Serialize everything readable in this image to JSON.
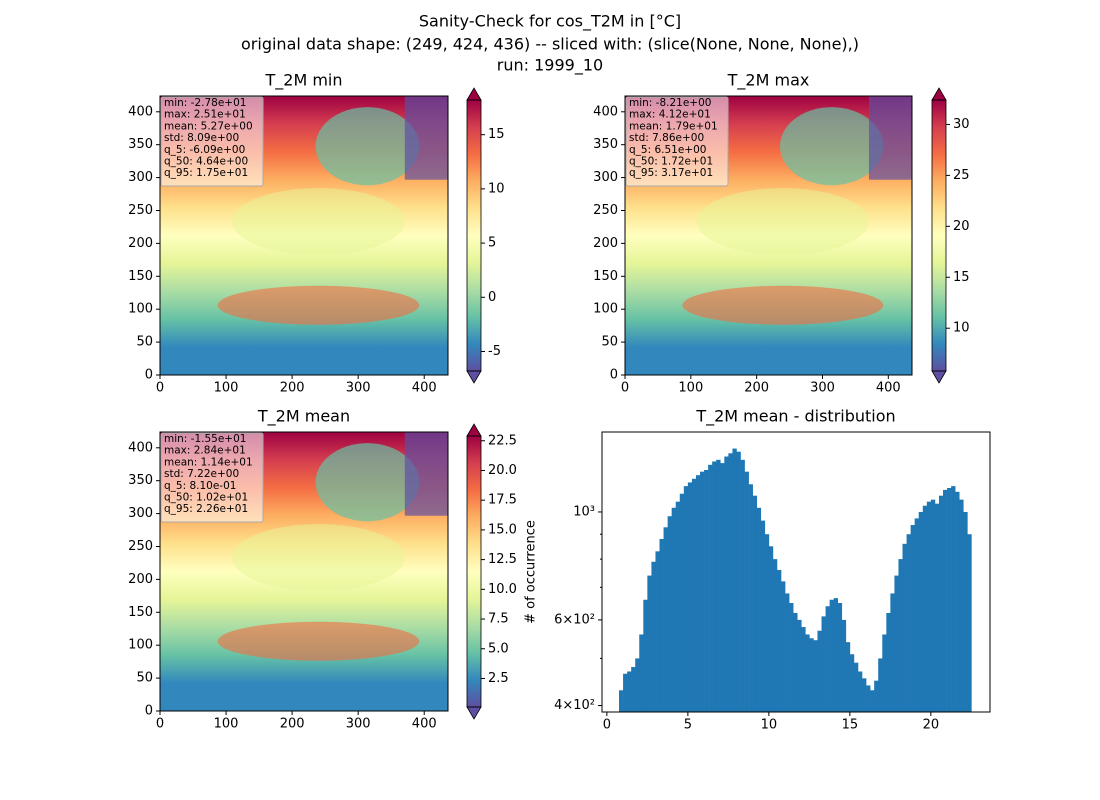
{
  "suptitle": [
    "Sanity-Check for cos_T2M in [°C]",
    "original data shape: (249, 424, 436) -- sliced with: (slice(None, None, None),)",
    "run: 1999_10"
  ],
  "chart_data": [
    {
      "type": "heatmap",
      "title": "T_2M min",
      "xlim": [
        0,
        436
      ],
      "ylim": [
        0,
        424
      ],
      "xticks": [
        0,
        100,
        200,
        300,
        400
      ],
      "yticks": [
        0,
        50,
        100,
        150,
        200,
        250,
        300,
        350,
        400
      ],
      "colors": [
        "#5e4fa2",
        "#3288bd",
        "#66c2a5",
        "#abdda4",
        "#e6f598",
        "#ffffbf",
        "#fee08b",
        "#fdae61",
        "#f46d43",
        "#d53e4f",
        "#9e0142"
      ],
      "clim": [
        -6.8,
        18.2
      ],
      "cticks": [
        -5,
        0,
        5,
        10,
        15
      ],
      "colorbar_extend": "both",
      "stats": [
        "min: -2.78e+01",
        "max: 2.51e+01",
        "mean: 5.27e+00",
        "std: 8.09e+00",
        "q_5: -6.09e+00",
        "q_50: 4.64e+00",
        "q_95: 1.75e+01"
      ]
    },
    {
      "type": "heatmap",
      "title": "T_2M max",
      "xlim": [
        0,
        436
      ],
      "ylim": [
        0,
        424
      ],
      "xticks": [
        0,
        100,
        200,
        300,
        400
      ],
      "yticks": [
        0,
        50,
        100,
        150,
        200,
        250,
        300,
        350,
        400
      ],
      "colors": [
        "#5e4fa2",
        "#3288bd",
        "#66c2a5",
        "#abdda4",
        "#e6f598",
        "#ffffbf",
        "#fee08b",
        "#fdae61",
        "#f46d43",
        "#d53e4f",
        "#9e0142"
      ],
      "clim": [
        5.8,
        32.4
      ],
      "cticks": [
        10,
        15,
        20,
        25,
        30
      ],
      "colorbar_extend": "both",
      "stats": [
        "min: -8.21e+00",
        "max: 4.12e+01",
        "mean: 1.79e+01",
        "std: 7.86e+00",
        "q_5: 6.51e+00",
        "q_50: 1.72e+01",
        "q_95: 3.17e+01"
      ]
    },
    {
      "type": "heatmap",
      "title": "T_2M mean",
      "xlim": [
        0,
        436
      ],
      "ylim": [
        0,
        424
      ],
      "xticks": [
        0,
        100,
        200,
        300,
        400
      ],
      "yticks": [
        0,
        50,
        100,
        150,
        200,
        250,
        300,
        350,
        400
      ],
      "colors": [
        "#5e4fa2",
        "#3288bd",
        "#66c2a5",
        "#abdda4",
        "#e6f598",
        "#ffffbf",
        "#fee08b",
        "#fdae61",
        "#f46d43",
        "#d53e4f",
        "#9e0142"
      ],
      "clim": [
        0.1,
        22.9
      ],
      "cticks": [
        2.5,
        {
          "value": 5,
          "label": "5.0"
        },
        7.5,
        {
          "value": 10,
          "label": "10.0"
        },
        12.5,
        {
          "value": 15,
          "label": "15.0"
        },
        17.5,
        {
          "value": 20,
          "label": "20.0"
        },
        22.5
      ],
      "colorbar_extend": "both",
      "stats": [
        "min: -1.55e+01",
        "max: 2.84e+01",
        "mean: 1.14e+01",
        "std: 7.22e+00",
        "q_5: 8.10e-01",
        "q_50: 1.02e+01",
        "q_95: 2.26e+01"
      ]
    },
    {
      "type": "histogram",
      "title": "T_2M mean - distribution",
      "ylabel": "# of occurrence",
      "color": "#1f77b4",
      "log_y": true,
      "xlim": [
        -0.3,
        23.65
      ],
      "xticks": [
        0,
        5,
        10,
        15,
        20
      ],
      "ylim": [
        388,
        1460
      ],
      "yticks": [
        {
          "value": 400,
          "label": "4×10²"
        },
        {
          "value": 600,
          "label": "6×10²"
        },
        {
          "value": 1000,
          "label": "10³"
        }
      ],
      "yminorticks": [
        500,
        700,
        800,
        900
      ],
      "bins": [
        0.75,
        1,
        1.25,
        1.5,
        1.75,
        2,
        2.25,
        2.5,
        2.75,
        3,
        3.25,
        3.5,
        3.75,
        4,
        4.25,
        4.5,
        4.75,
        5,
        5.25,
        5.5,
        5.75,
        6,
        6.25,
        6.5,
        6.75,
        7,
        7.25,
        7.5,
        7.75,
        8,
        8.25,
        8.5,
        8.75,
        9,
        9.25,
        9.5,
        9.75,
        10,
        10.25,
        10.5,
        10.75,
        11,
        11.25,
        11.5,
        11.75,
        12,
        12.25,
        12.5,
        12.75,
        13,
        13.25,
        13.5,
        13.75,
        14,
        14.25,
        14.5,
        14.75,
        15,
        15.25,
        15.5,
        15.75,
        16,
        16.25,
        16.5,
        16.75,
        17,
        17.25,
        17.5,
        17.75,
        18,
        18.25,
        18.5,
        18.75,
        19,
        19.25,
        19.5,
        19.75,
        20,
        20.25,
        20.5,
        20.75,
        21,
        21.25,
        21.5,
        21.75,
        22,
        22.25,
        22.5
      ],
      "counts": [
        430,
        465,
        470,
        480,
        500,
        560,
        660,
        740,
        790,
        830,
        880,
        930,
        980,
        1020,
        1050,
        1090,
        1130,
        1150,
        1170,
        1190,
        1210,
        1220,
        1250,
        1270,
        1280,
        1260,
        1300,
        1320,
        1350,
        1330,
        1280,
        1210,
        1140,
        1080,
        1020,
        960,
        900,
        850,
        800,
        760,
        720,
        680,
        650,
        620,
        600,
        580,
        560,
        550,
        545,
        570,
        610,
        640,
        660,
        665,
        650,
        600,
        540,
        510,
        490,
        470,
        455,
        440,
        430,
        450,
        500,
        560,
        620,
        680,
        740,
        800,
        860,
        900,
        940,
        970,
        1000,
        1030,
        1050,
        1060,
        1040,
        1080,
        1110,
        1120,
        1130,
        1100,
        1060,
        1000,
        900
      ]
    }
  ]
}
